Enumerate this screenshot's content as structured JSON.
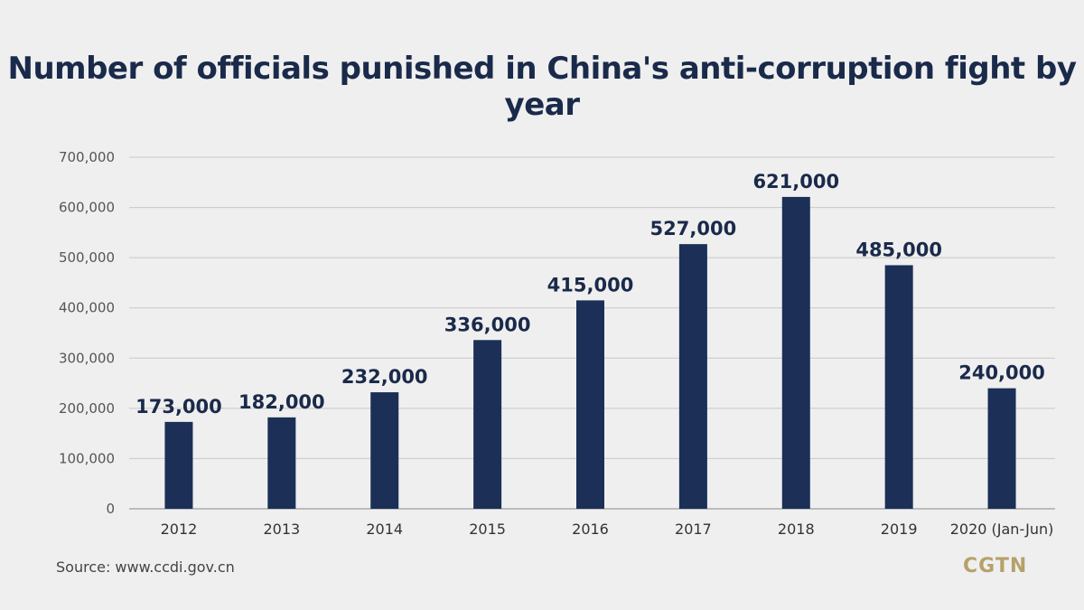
{
  "chart_data": {
    "type": "bar",
    "title": "Number of officials punished in China's anti-corruption fight by year",
    "categories": [
      "2012",
      "2013",
      "2014",
      "2015",
      "2016",
      "2017",
      "2018",
      "2019",
      "2020 (Jan-Jun)"
    ],
    "values": [
      173000,
      182000,
      232000,
      336000,
      415000,
      527000,
      621000,
      485000,
      240000
    ],
    "value_labels": [
      "173,000",
      "182,000",
      "232,000",
      "336,000",
      "415,000",
      "527,000",
      "621,000",
      "485,000",
      "240,000"
    ],
    "yticks": [
      0,
      100000,
      200000,
      300000,
      400000,
      500000,
      600000,
      700000
    ],
    "ytick_labels": [
      "0",
      "100,000",
      "200,000",
      "300,000",
      "400,000",
      "500,000",
      "600,000",
      "700,000"
    ],
    "ylim": [
      0,
      700000
    ],
    "xlabel": "",
    "ylabel": "",
    "grid": true
  },
  "source": "Source: www.ccdi.gov.cn",
  "logo": "CGTN",
  "colors": {
    "bar": "#1b2f57",
    "label": "#1a2a4a",
    "grid": "#c8c8c8",
    "logo": "#b5a26a"
  }
}
